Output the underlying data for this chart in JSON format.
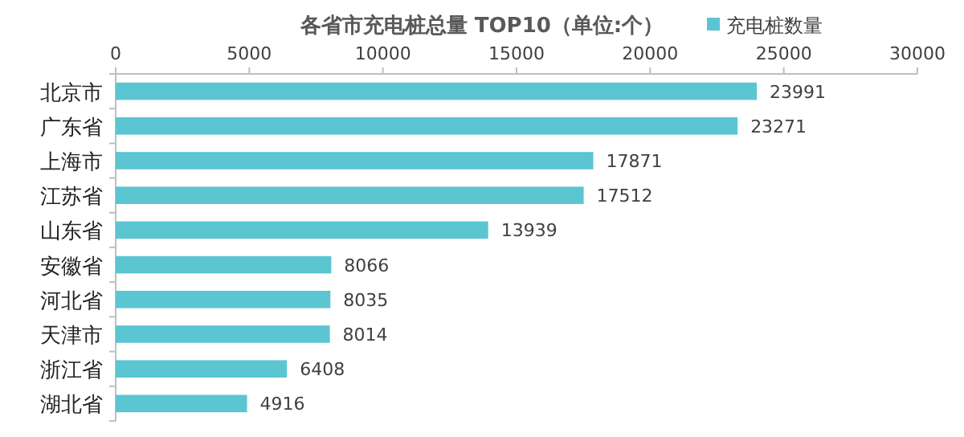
{
  "chart_data": {
    "type": "bar",
    "orientation": "horizontal",
    "title": "各省市充电桩总量 TOP10（单位:个）",
    "categories": [
      "北京市",
      "广东省",
      "上海市",
      "江苏省",
      "山东省",
      "安徽省",
      "河北省",
      "天津市",
      "浙江省",
      "湖北省"
    ],
    "series": [
      {
        "name": "充电桩数量",
        "color": "#5bc5d1",
        "values": [
          23991,
          23271,
          17871,
          17512,
          13939,
          8066,
          8035,
          8014,
          6408,
          4916
        ]
      }
    ],
    "xlim": [
      0,
      30000
    ],
    "xticks": [
      0,
      5000,
      10000,
      15000,
      20000,
      25000,
      30000
    ],
    "data_labels": true,
    "legend": "top right",
    "grid": false
  }
}
